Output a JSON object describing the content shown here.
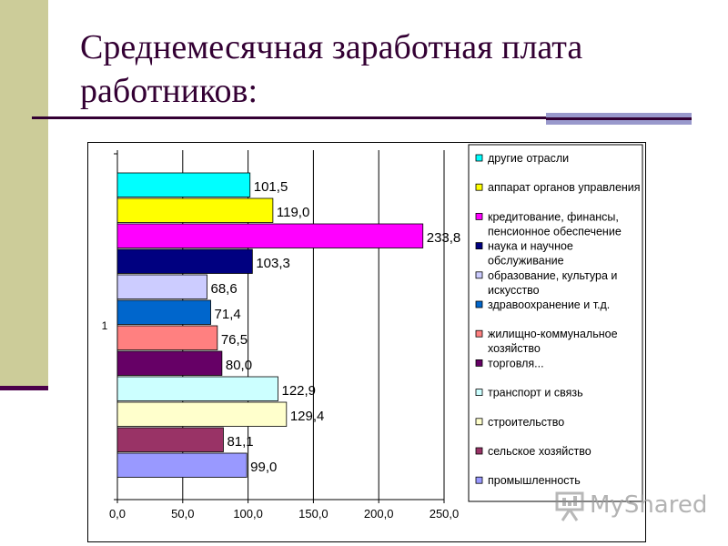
{
  "slide": {
    "title": "Среднемесячная заработная плата работников:"
  },
  "colors": {
    "stripe": "#cccc99",
    "accent_dark": "#330033",
    "accent_rule": "#9999cc"
  },
  "chart_data": {
    "type": "bar",
    "orientation": "horizontal",
    "title": "",
    "xlabel": "",
    "ylabel": "",
    "xlim": [
      0,
      250
    ],
    "x_ticks": [
      "0,0",
      "50,0",
      "100,0",
      "150,0",
      "200,0",
      "250,0"
    ],
    "category_axis_label": "1",
    "grid": "vertical",
    "legend_position": "right",
    "series": [
      {
        "name": "другие отрасли",
        "value": 101.5,
        "label": "101,5",
        "color": "#00ffff"
      },
      {
        "name": "аппарат органов управления",
        "value": 119.0,
        "label": "119,0",
        "color": "#ffff00"
      },
      {
        "name": "кредитование, финансы, пенсионное обеспечение",
        "value": 233.8,
        "label": "233,8",
        "color": "#ff00ff"
      },
      {
        "name": "наука и научное обслуживание",
        "value": 103.3,
        "label": "103,3",
        "color": "#000080"
      },
      {
        "name": "образование, культура и искусство",
        "value": 68.6,
        "label": "68,6",
        "color": "#ccccff"
      },
      {
        "name": "здравоохранение и т.д.",
        "value": 71.4,
        "label": "71,4",
        "color": "#0066cc"
      },
      {
        "name": "жилищно-коммунальное хозяйство",
        "value": 76.5,
        "label": "76,5",
        "color": "#ff8080"
      },
      {
        "name": "торговля...",
        "value": 80.0,
        "label": "80,0",
        "color": "#660066"
      },
      {
        "name": "транспорт и связь",
        "value": 122.9,
        "label": "122,9",
        "color": "#ccffff"
      },
      {
        "name": "строительство",
        "value": 129.4,
        "label": "129,4",
        "color": "#ffffcc"
      },
      {
        "name": "сельское хозяйство",
        "value": 81.1,
        "label": "81,1",
        "color": "#993366"
      },
      {
        "name": "промышленность",
        "value": 99.0,
        "label": "99,0",
        "color": "#9999ff"
      }
    ]
  },
  "watermark": {
    "text": "MyShared"
  }
}
